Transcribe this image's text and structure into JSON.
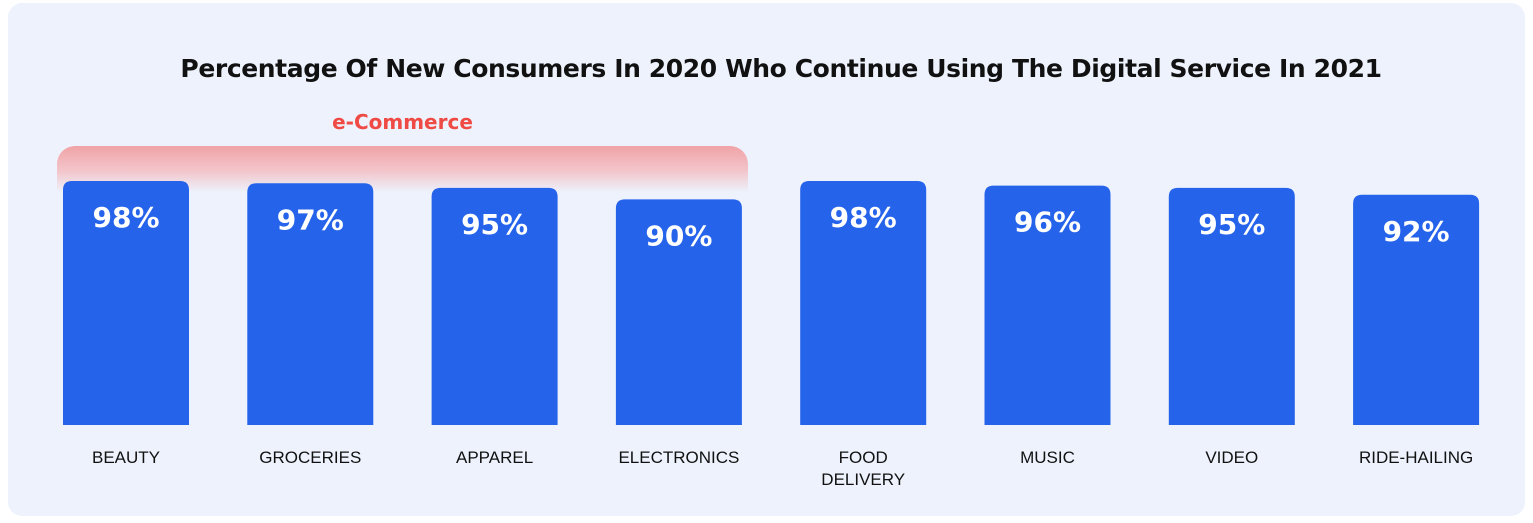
{
  "chart_data": {
    "type": "bar",
    "title": "Percentage Of New Consumers In 2020 Who Continue Using The Digital Service In 2021",
    "group_label": "e-Commerce",
    "group_categories": [
      "BEAUTY",
      "GROCERIES",
      "APPAREL",
      "ELECTRONICS"
    ],
    "categories": [
      "BEAUTY",
      "GROCERIES",
      "APPAREL",
      "ELECTRONICS",
      "FOOD DELIVERY",
      "MUSIC",
      "VIDEO",
      "RIDE-HAILING"
    ],
    "values": [
      98,
      97,
      95,
      90,
      98,
      96,
      95,
      92
    ],
    "value_labels": [
      "98%",
      "97%",
      "95%",
      "90%",
      "98%",
      "96%",
      "95%",
      "92%"
    ],
    "bar_color": "#2563eb",
    "group_color": "#ef4b44",
    "grid": false,
    "legend": "none"
  }
}
